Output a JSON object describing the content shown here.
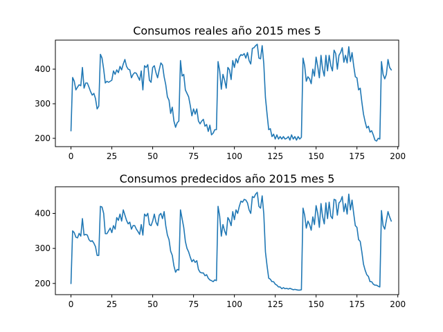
{
  "chart_data": [
    {
      "type": "line",
      "title": "Consumos reales año 2015 mes 5",
      "xlabel": "",
      "ylabel": "",
      "xlim": [
        -9.55,
        200.55
      ],
      "ylim": [
        176,
        484
      ],
      "xticks": [
        0,
        25,
        50,
        75,
        100,
        125,
        150,
        175,
        200
      ],
      "yticks": [
        200,
        300,
        400
      ],
      "grid": false,
      "series": [
        {
          "color": "#1f77b4",
          "values": [
            222,
            376,
            365,
            340,
            348,
            355,
            352,
            405,
            345,
            360,
            360,
            348,
            335,
            325,
            330,
            315,
            285,
            293,
            443,
            432,
            400,
            360,
            365,
            362,
            365,
            368,
            395,
            385,
            398,
            390,
            408,
            398,
            415,
            428,
            408,
            400,
            398,
            375,
            385,
            390,
            388,
            378,
            368,
            395,
            340,
            410,
            405,
            413,
            368,
            362,
            405,
            410,
            390,
            375,
            398,
            418,
            412,
            378,
            355,
            320,
            310,
            272,
            290,
            250,
            232,
            245,
            250,
            425,
            380,
            385,
            340,
            330,
            320,
            295,
            265,
            285,
            270,
            285,
            250,
            242,
            250,
            255,
            235,
            240,
            220,
            238,
            210,
            215,
            225,
            225,
            422,
            395,
            342,
            385,
            368,
            345,
            405,
            398,
            370,
            425,
            405,
            430,
            418,
            435,
            442,
            440,
            445,
            432,
            448,
            425,
            415,
            460,
            462,
            468,
            472,
            432,
            430,
            468,
            415,
            318,
            270,
            225,
            228,
            205,
            212,
            198,
            210,
            198,
            205,
            198,
            205,
            198,
            200,
            205,
            195,
            210,
            198,
            205,
            195,
            205,
            198,
            203,
            432,
            410,
            365,
            378,
            372,
            358,
            400,
            380,
            435,
            408,
            375,
            440,
            400,
            380,
            440,
            395,
            440,
            410,
            395,
            455,
            445,
            400,
            440,
            448,
            462,
            420,
            440,
            418,
            465,
            422,
            448,
            410,
            378,
            375,
            340,
            345,
            305,
            270,
            248,
            230,
            235,
            218,
            222,
            210,
            195,
            192,
            200,
            198,
            422,
            385,
            372,
            385,
            428,
            405,
            398
          ]
        }
      ]
    },
    {
      "type": "line",
      "title": "Consumos predecidos año 2015 mes 5",
      "xlabel": "",
      "ylabel": "",
      "xlim": [
        -9.55,
        200.55
      ],
      "ylim": [
        168,
        476
      ],
      "xticks": [
        0,
        25,
        50,
        75,
        100,
        125,
        150,
        175,
        200
      ],
      "yticks": [
        200,
        300,
        400
      ],
      "grid": false,
      "series": [
        {
          "color": "#1f77b4",
          "values": [
            200,
            350,
            345,
            332,
            330,
            343,
            335,
            385,
            338,
            340,
            338,
            325,
            320,
            322,
            315,
            305,
            280,
            280,
            420,
            418,
            400,
            342,
            342,
            350,
            358,
            345,
            365,
            355,
            388,
            380,
            398,
            378,
            410,
            395,
            380,
            370,
            375,
            355,
            365,
            365,
            355,
            348,
            340,
            368,
            338,
            398,
            392,
            400,
            368,
            365,
            378,
            398,
            375,
            365,
            395,
            400,
            385,
            405,
            365,
            338,
            325,
            292,
            280,
            250,
            232,
            240,
            238,
            410,
            385,
            360,
            320,
            300,
            290,
            275,
            262,
            268,
            260,
            265,
            240,
            232,
            230,
            230,
            222,
            225,
            215,
            210,
            208,
            205,
            210,
            208,
            420,
            392,
            335,
            368,
            350,
            338,
            388,
            380,
            365,
            405,
            382,
            410,
            400,
            420,
            435,
            432,
            440,
            438,
            430,
            410,
            400,
            448,
            445,
            455,
            460,
            420,
            415,
            450,
            398,
            290,
            250,
            215,
            212,
            205,
            205,
            198,
            195,
            190,
            190,
            185,
            188,
            185,
            186,
            184,
            186,
            184,
            182,
            183,
            182,
            181,
            181,
            182,
            415,
            395,
            358,
            378,
            368,
            352,
            390,
            368,
            422,
            400,
            360,
            428,
            390,
            370,
            430,
            385,
            432,
            392,
            385,
            440,
            438,
            395,
            430,
            435,
            448,
            405,
            428,
            398,
            455,
            410,
            438,
            400,
            365,
            360,
            325,
            320,
            290,
            255,
            238,
            225,
            220,
            205,
            205,
            198,
            195,
            195,
            192,
            190,
            408,
            365,
            355,
            380,
            405,
            390,
            378
          ]
        }
      ]
    }
  ]
}
